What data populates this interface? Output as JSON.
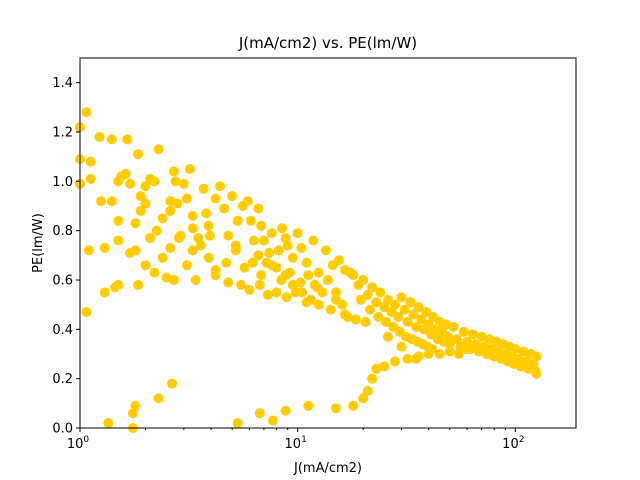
{
  "chart_data": {
    "type": "scatter",
    "title": "J(mA/cm2) vs. PE(lm/W)",
    "xlabel": "J(mA/cm2)",
    "ylabel": "PE(lm/W)",
    "xscale": "log",
    "xlim": [
      1,
      190
    ],
    "ylim": [
      0,
      1.5
    ],
    "xticks": [
      {
        "value": 1,
        "base": "10",
        "exp": "0"
      },
      {
        "value": 10,
        "base": "10",
        "exp": "1"
      },
      {
        "value": 100,
        "base": "10",
        "exp": "2"
      }
    ],
    "yticks": [
      "0.0",
      "0.2",
      "0.4",
      "0.6",
      "0.8",
      "1.0",
      "1.2",
      "1.4"
    ],
    "grid": false,
    "color": "#ffcc00",
    "series": [
      {
        "points": [
          [
            1.0,
            1.22
          ],
          [
            1.0,
            1.09
          ],
          [
            1.0,
            0.99
          ],
          [
            1.07,
            1.28
          ],
          [
            1.12,
            1.08
          ],
          [
            1.12,
            1.01
          ],
          [
            1.23,
            1.18
          ],
          [
            1.25,
            0.92
          ],
          [
            1.4,
            1.17
          ],
          [
            1.4,
            0.92
          ],
          [
            1.5,
            1.0
          ],
          [
            1.5,
            0.84
          ],
          [
            1.5,
            0.76
          ],
          [
            1.55,
            1.02
          ],
          [
            1.62,
            1.03
          ],
          [
            1.65,
            1.17
          ],
          [
            1.7,
            0.99
          ],
          [
            1.8,
            0.83
          ],
          [
            1.85,
            1.11
          ],
          [
            1.9,
            0.94
          ],
          [
            1.9,
            0.88
          ],
          [
            2.0,
            0.98
          ],
          [
            2.0,
            0.91
          ],
          [
            2.1,
            1.01
          ],
          [
            2.2,
            1.0
          ],
          [
            2.3,
            1.13
          ],
          [
            2.25,
            0.8
          ],
          [
            2.4,
            0.85
          ],
          [
            2.6,
            0.92
          ],
          [
            2.6,
            0.88
          ],
          [
            2.7,
            1.04
          ],
          [
            2.75,
            1.0
          ],
          [
            2.8,
            0.91
          ],
          [
            2.85,
            0.77
          ],
          [
            3.0,
            0.99
          ],
          [
            3.1,
            0.93
          ],
          [
            3.2,
            1.05
          ],
          [
            3.3,
            0.86
          ],
          [
            3.3,
            0.81
          ],
          [
            3.5,
            0.77
          ],
          [
            3.7,
            0.97
          ],
          [
            3.8,
            0.87
          ],
          [
            3.9,
            0.82
          ],
          [
            3.95,
            0.78
          ],
          [
            4.2,
            0.93
          ],
          [
            4.4,
            0.98
          ],
          [
            4.6,
            0.89
          ],
          [
            4.8,
            0.78
          ],
          [
            5.0,
            0.94
          ],
          [
            5.2,
            0.74
          ],
          [
            5.3,
            0.84
          ],
          [
            5.6,
            0.9
          ],
          [
            5.9,
            0.92
          ],
          [
            6.1,
            0.84
          ],
          [
            6.3,
            0.76
          ],
          [
            6.6,
            0.89
          ],
          [
            6.8,
            0.82
          ],
          [
            7.0,
            0.76
          ],
          [
            7.4,
            0.71
          ],
          [
            7.6,
            0.79
          ],
          [
            8.2,
            0.72
          ],
          [
            8.5,
            0.81
          ],
          [
            8.8,
            0.77
          ],
          [
            9.0,
            0.74
          ],
          [
            9.5,
            0.69
          ],
          [
            10.0,
            0.79
          ],
          [
            10.4,
            0.73
          ],
          [
            11.0,
            0.67
          ],
          [
            11.8,
            0.76
          ],
          [
            12.5,
            0.63
          ],
          [
            13.5,
            0.72
          ],
          [
            14.5,
            0.66
          ],
          [
            15.5,
            0.68
          ],
          [
            16.5,
            0.64
          ],
          [
            17.5,
            0.63
          ],
          [
            1.1,
            0.72
          ],
          [
            1.3,
            0.73
          ],
          [
            1.45,
            0.57
          ],
          [
            1.7,
            0.71
          ],
          [
            1.8,
            0.72
          ],
          [
            1.85,
            0.58
          ],
          [
            2.0,
            0.66
          ],
          [
            2.1,
            0.77
          ],
          [
            2.2,
            0.63
          ],
          [
            2.4,
            0.69
          ],
          [
            2.6,
            0.73
          ],
          [
            2.9,
            0.78
          ],
          [
            3.1,
            0.66
          ],
          [
            3.3,
            0.72
          ],
          [
            3.6,
            0.74
          ],
          [
            3.9,
            0.69
          ],
          [
            4.2,
            0.64
          ],
          [
            4.7,
            0.67
          ],
          [
            5.2,
            0.72
          ],
          [
            5.7,
            0.65
          ],
          [
            6.2,
            0.67
          ],
          [
            6.8,
            0.62
          ],
          [
            7.6,
            0.66
          ],
          [
            8.4,
            0.6
          ],
          [
            9.2,
            0.63
          ],
          [
            10.3,
            0.59
          ],
          [
            11.2,
            0.62
          ],
          [
            12.3,
            0.57
          ],
          [
            13.8,
            0.6
          ],
          [
            15.0,
            0.55
          ],
          [
            1.07,
            0.47
          ],
          [
            1.3,
            0.55
          ],
          [
            1.5,
            0.58
          ],
          [
            2.5,
            0.61
          ],
          [
            2.7,
            0.6
          ],
          [
            3.4,
            0.6
          ],
          [
            4.2,
            0.62
          ],
          [
            4.8,
            0.59
          ],
          [
            5.5,
            0.58
          ],
          [
            6.0,
            0.56
          ],
          [
            6.7,
            0.58
          ],
          [
            7.3,
            0.54
          ],
          [
            8.0,
            0.55
          ],
          [
            8.9,
            0.53
          ],
          [
            9.8,
            0.55
          ],
          [
            11.0,
            0.51
          ],
          [
            12.5,
            0.5
          ],
          [
            14.2,
            0.48
          ],
          [
            16.5,
            0.46
          ],
          [
            18.5,
            0.44
          ],
          [
            20.5,
            0.43
          ],
          [
            1.35,
            0.02
          ],
          [
            1.75,
            0.0
          ],
          [
            1.75,
            0.06
          ],
          [
            1.8,
            0.09
          ],
          [
            2.3,
            0.12
          ],
          [
            2.65,
            0.18
          ],
          [
            5.3,
            0.02
          ],
          [
            6.7,
            0.06
          ],
          [
            7.7,
            0.03
          ],
          [
            8.8,
            0.07
          ],
          [
            11.2,
            0.09
          ],
          [
            15.0,
            0.08
          ],
          [
            18.0,
            0.09
          ],
          [
            20.0,
            0.12
          ],
          [
            21.0,
            0.15
          ],
          [
            22.0,
            0.2
          ],
          [
            23.0,
            0.24
          ],
          [
            25.0,
            0.25
          ],
          [
            26.0,
            0.37
          ],
          [
            28.0,
            0.27
          ],
          [
            30.0,
            0.33
          ],
          [
            32.0,
            0.28
          ],
          [
            35.0,
            0.28
          ],
          [
            36.0,
            0.29
          ],
          [
            40.0,
            0.3
          ],
          [
            45.0,
            0.3
          ],
          [
            50.0,
            0.31
          ],
          [
            55.0,
            0.3
          ],
          [
            60.0,
            0.32
          ],
          [
            18.0,
            0.62
          ],
          [
            19.0,
            0.58
          ],
          [
            20.0,
            0.6
          ],
          [
            21.0,
            0.54
          ],
          [
            22.0,
            0.57
          ],
          [
            23.0,
            0.51
          ],
          [
            24.0,
            0.55
          ],
          [
            25.0,
            0.49
          ],
          [
            26.0,
            0.52
          ],
          [
            27.0,
            0.47
          ],
          [
            28.0,
            0.5
          ],
          [
            29.0,
            0.45
          ],
          [
            30.0,
            0.53
          ],
          [
            31.0,
            0.48
          ],
          [
            32.0,
            0.43
          ],
          [
            33.0,
            0.51
          ],
          [
            34.0,
            0.46
          ],
          [
            35.0,
            0.41
          ],
          [
            36.0,
            0.49
          ],
          [
            37.0,
            0.44
          ],
          [
            38.0,
            0.4
          ],
          [
            39.0,
            0.47
          ],
          [
            40.0,
            0.42
          ],
          [
            41.0,
            0.38
          ],
          [
            42.0,
            0.45
          ],
          [
            43.0,
            0.4
          ],
          [
            44.0,
            0.36
          ],
          [
            45.0,
            0.43
          ],
          [
            46.0,
            0.39
          ],
          [
            47.0,
            0.35
          ],
          [
            48.0,
            0.42
          ],
          [
            49.0,
            0.37
          ],
          [
            50.0,
            0.34
          ],
          [
            52.0,
            0.41
          ],
          [
            54.0,
            0.36
          ],
          [
            56.0,
            0.33
          ],
          [
            58.0,
            0.39
          ],
          [
            60.0,
            0.35
          ],
          [
            62.0,
            0.32
          ],
          [
            64.0,
            0.38
          ],
          [
            66.0,
            0.34
          ],
          [
            68.0,
            0.31
          ],
          [
            70.0,
            0.37
          ],
          [
            72.0,
            0.33
          ],
          [
            74.0,
            0.3
          ],
          [
            76.0,
            0.36
          ],
          [
            78.0,
            0.32
          ],
          [
            80.0,
            0.29
          ],
          [
            82.0,
            0.35
          ],
          [
            84.0,
            0.31
          ],
          [
            86.0,
            0.28
          ],
          [
            88.0,
            0.34
          ],
          [
            90.0,
            0.3
          ],
          [
            92.0,
            0.27
          ],
          [
            94.0,
            0.33
          ],
          [
            96.0,
            0.29
          ],
          [
            98.0,
            0.26
          ],
          [
            100.0,
            0.32
          ],
          [
            103.0,
            0.28
          ],
          [
            106.0,
            0.25
          ],
          [
            109.0,
            0.31
          ],
          [
            112.0,
            0.27
          ],
          [
            115.0,
            0.24
          ],
          [
            118.0,
            0.3
          ],
          [
            121.0,
            0.26
          ],
          [
            124.0,
            0.23
          ],
          [
            125.0,
            0.29
          ],
          [
            125.0,
            0.22
          ],
          [
            19.5,
            0.52
          ],
          [
            21.5,
            0.48
          ],
          [
            23.5,
            0.45
          ],
          [
            25.5,
            0.43
          ],
          [
            27.5,
            0.41
          ],
          [
            29.5,
            0.39
          ],
          [
            31.5,
            0.37
          ],
          [
            33.5,
            0.36
          ],
          [
            35.5,
            0.35
          ],
          [
            37.5,
            0.34
          ],
          [
            39.5,
            0.33
          ],
          [
            41.5,
            0.32
          ],
          [
            17.0,
            0.45
          ],
          [
            16.0,
            0.5
          ],
          [
            15.0,
            0.52
          ],
          [
            13.0,
            0.55
          ],
          [
            12.0,
            0.58
          ],
          [
            11.5,
            0.52
          ],
          [
            10.5,
            0.55
          ],
          [
            9.5,
            0.58
          ],
          [
            8.8,
            0.62
          ],
          [
            8.0,
            0.65
          ],
          [
            7.2,
            0.67
          ],
          [
            6.6,
            0.7
          ]
        ]
      }
    ]
  }
}
